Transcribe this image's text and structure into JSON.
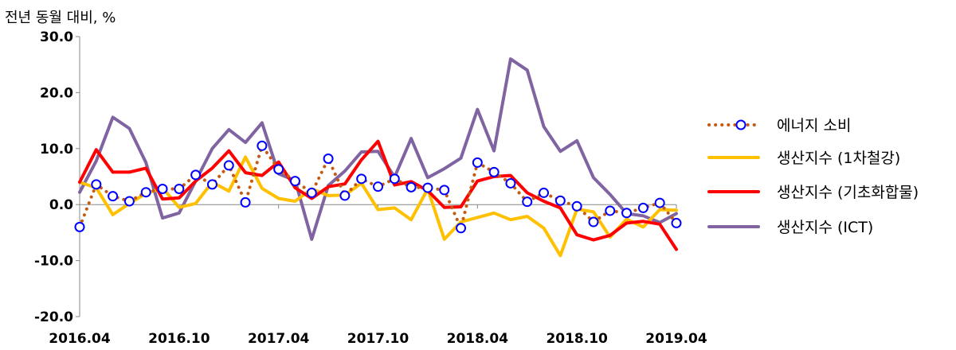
{
  "chart_data": {
    "type": "line",
    "unit_label": "전년 동월 대비, %",
    "ylim": [
      -20,
      30
    ],
    "yticks": [
      {
        "value": 30,
        "label": "30.0"
      },
      {
        "value": 20,
        "label": "20.0"
      },
      {
        "value": 10,
        "label": "10.0"
      },
      {
        "value": 0,
        "label": "0.0"
      },
      {
        "value": -10,
        "label": "-10.0"
      },
      {
        "value": -20,
        "label": "-20.0"
      }
    ],
    "x": [
      "2016.04",
      "2016.05",
      "2016.06",
      "2016.07",
      "2016.08",
      "2016.09",
      "2016.10",
      "2016.11",
      "2016.12",
      "2017.01",
      "2017.02",
      "2017.03",
      "2017.04",
      "2017.05",
      "2017.06",
      "2017.07",
      "2017.08",
      "2017.09",
      "2017.10",
      "2017.11",
      "2017.12",
      "2018.01",
      "2018.02",
      "2018.03",
      "2018.04",
      "2018.05",
      "2018.06",
      "2018.07",
      "2018.08",
      "2018.09",
      "2018.10",
      "2018.11",
      "2018.12",
      "2019.01",
      "2019.02",
      "2019.03",
      "2019.04"
    ],
    "xtick_labels": [
      {
        "index": 0,
        "label": "2016.04"
      },
      {
        "index": 6,
        "label": "2016.10"
      },
      {
        "index": 12,
        "label": "2017.04"
      },
      {
        "index": 18,
        "label": "2017.10"
      },
      {
        "index": 24,
        "label": "2018.04"
      },
      {
        "index": 30,
        "label": "2018.10"
      },
      {
        "index": 36,
        "label": "2019.04"
      }
    ],
    "grid": false,
    "legend_position": "right",
    "series": [
      {
        "name": "에너지 소비",
        "style": "dotted-markers",
        "color": "#C55A11",
        "marker_color": "#0000FF",
        "values": [
          -4.0,
          3.6,
          1.5,
          0.6,
          2.2,
          2.8,
          2.8,
          5.3,
          3.6,
          7.0,
          0.4,
          10.5,
          6.3,
          4.2,
          2.1,
          8.2,
          1.6,
          4.6,
          3.2,
          4.6,
          3.1,
          3.0,
          2.6,
          -4.2,
          7.5,
          5.8,
          3.8,
          0.5,
          2.1,
          0.7,
          -0.3,
          -3.1,
          -1.1,
          -1.5,
          -0.6,
          0.3,
          -3.3
        ]
      },
      {
        "name": "생산지수 (1차철강)",
        "style": "line",
        "color": "#FFC000",
        "values": [
          4.0,
          3.0,
          -1.8,
          0.2,
          2.0,
          3.0,
          -0.5,
          0.2,
          4.0,
          2.4,
          8.5,
          2.9,
          1.1,
          0.6,
          2.8,
          1.6,
          1.7,
          3.8,
          -0.9,
          -0.6,
          -2.7,
          2.8,
          -6.2,
          -3.1,
          -2.3,
          -1.5,
          -2.7,
          -2.1,
          -4.2,
          -9.1,
          -0.8,
          -1.3,
          -5.8,
          -2.6,
          -4.0,
          -0.9,
          -1.0
        ]
      },
      {
        "name": "생산지수 (기초화합물)",
        "style": "line",
        "color": "#FF0000",
        "values": [
          4.0,
          9.8,
          5.8,
          5.8,
          6.5,
          1.0,
          1.2,
          4.2,
          6.5,
          9.6,
          5.7,
          5.2,
          7.6,
          3.0,
          1.1,
          3.2,
          3.7,
          8.0,
          11.3,
          3.5,
          4.1,
          2.5,
          -0.5,
          -0.4,
          4.2,
          5.0,
          5.2,
          2.1,
          0.6,
          -0.6,
          -5.4,
          -6.3,
          -5.5,
          -3.3,
          -3.0,
          -3.5,
          -8.0
        ]
      },
      {
        "name": "생산지수 (ICT)",
        "style": "line",
        "color": "#8064A2",
        "values": [
          2.2,
          7.8,
          15.6,
          13.6,
          7.5,
          -2.4,
          -1.5,
          4.2,
          10.0,
          13.4,
          11.1,
          14.6,
          5.5,
          4.3,
          -6.2,
          3.4,
          6.0,
          9.4,
          9.5,
          4.9,
          11.8,
          4.8,
          6.4,
          8.3,
          17.0,
          9.6,
          26.0,
          24.0,
          13.9,
          9.5,
          11.4,
          4.8,
          1.8,
          -1.6,
          -2.0,
          -3.2,
          -1.6
        ]
      }
    ]
  }
}
